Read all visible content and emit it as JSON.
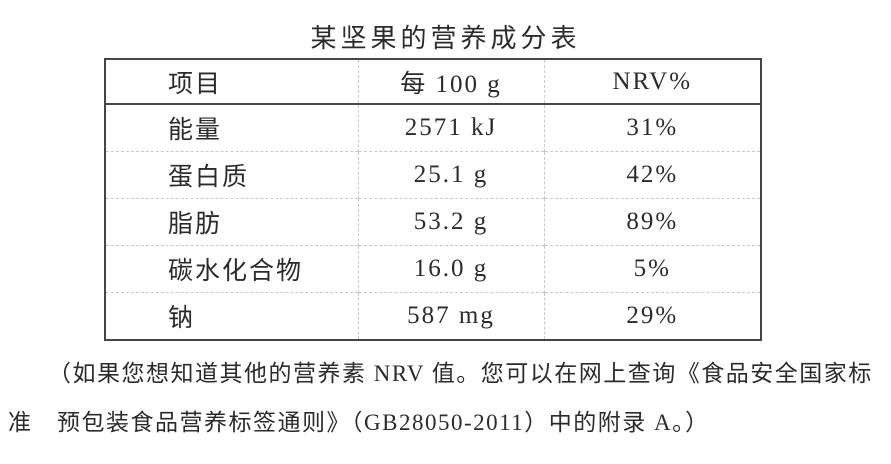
{
  "title": "某坚果的营养成分表",
  "chart_data": {
    "type": "table",
    "title": "某坚果的营养成分表",
    "columns": [
      "项目",
      "每 100 g",
      "NRV%"
    ],
    "rows": [
      [
        "能量",
        "2571 kJ",
        "31%"
      ],
      [
        "蛋白质",
        "25.1 g",
        "42%"
      ],
      [
        "脂肪",
        "53.2 g",
        "89%"
      ],
      [
        "碳水化合物",
        "16.0 g",
        "5%"
      ],
      [
        "钠",
        "587 mg",
        "29%"
      ]
    ]
  },
  "table": {
    "headers": {
      "item": "项目",
      "per100g": "每 100 g",
      "nrv": "NRV%"
    },
    "rows": [
      {
        "item": "能量",
        "per100g": "2571 kJ",
        "nrv": "31%"
      },
      {
        "item": "蛋白质",
        "per100g": "25.1 g",
        "nrv": "42%"
      },
      {
        "item": "脂肪",
        "per100g": "53.2 g",
        "nrv": "89%"
      },
      {
        "item": "碳水化合物",
        "per100g": "16.0 g",
        "nrv": "5%"
      },
      {
        "item": "钠",
        "per100g": "587 mg",
        "nrv": "29%"
      }
    ]
  },
  "footnote": {
    "line1": "（如果您想知道其他的营养素 NRV 值。您可以在网上查询《食品安全国家标",
    "line2": "准　预包装食品营养标签通则》（GB28050-2011）中的附录 A。）"
  },
  "colors": {
    "background": "#ffffff",
    "text": "#2b2b2b",
    "outer_border": "#454545",
    "inner_gridline": "#c9c9c9"
  }
}
